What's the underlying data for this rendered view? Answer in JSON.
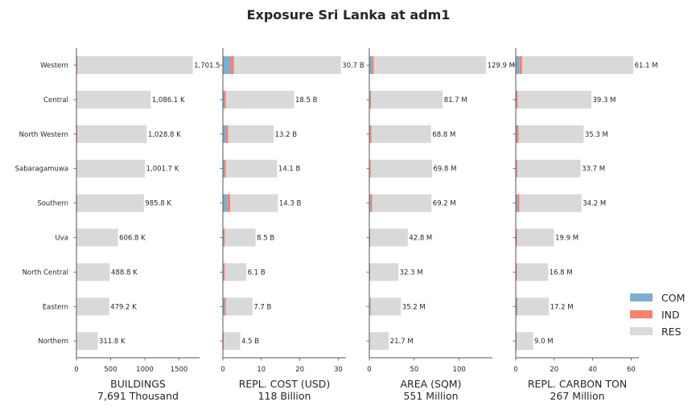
{
  "chart_data": {
    "title": "Exposure Sri Lanka at adm1",
    "type": "bar",
    "orientation": "horizontal",
    "stacked": true,
    "legend": {
      "placement": "right",
      "entries": [
        {
          "name": "COM",
          "color": "#7eadd1"
        },
        {
          "name": "IND",
          "color": "#f4826e"
        },
        {
          "name": "RES",
          "color": "#d9d9d9"
        }
      ]
    },
    "categories": [
      "Western",
      "Central",
      "North Western",
      "Sabaragamuwa",
      "Southern",
      "Uva",
      "North Central",
      "Eastern",
      "Northern"
    ],
    "panels": [
      {
        "xlabel": "BUILDINGS",
        "subtitle": "7,691 Thousand",
        "xlim": [
          0,
          1800
        ],
        "xticks": [
          0,
          500,
          1000,
          1500
        ],
        "xtick_labels": [
          "0",
          "500",
          "1000",
          "1500"
        ],
        "labels": [
          "1,701.5 K",
          "1,086.1 K",
          "1,028.8 K",
          "1,001.7 K",
          "985.8 K",
          "606.8 K",
          "488.8 K",
          "479.2 K",
          "311.8 K"
        ],
        "series": [
          {
            "name": "COM",
            "values": [
              5,
              3,
              3,
              3,
              3,
              2,
              2,
              2,
              1
            ]
          },
          {
            "name": "IND",
            "values": [
              10,
              4,
              9,
              4,
              8,
              3,
              4,
              3,
              3
            ]
          },
          {
            "name": "RES",
            "values": [
              1686.5,
              1079.1,
              1016.8,
              994.7,
              974.8,
              601.8,
              482.8,
              474.2,
              307.8
            ]
          }
        ]
      },
      {
        "xlabel": "REPL. COST (USD)",
        "subtitle": "118 Billion",
        "xlim": [
          0,
          32
        ],
        "xticks": [
          0,
          10,
          20,
          30
        ],
        "xtick_labels": [
          "0",
          "10",
          "20",
          "30"
        ],
        "labels": [
          "30.7 B",
          "18.5 B",
          "13.2 B",
          "14.1 B",
          "14.3 B",
          "8.5 B",
          "6.1 B",
          "7.7 B",
          "4.5 B"
        ],
        "series": [
          {
            "name": "COM",
            "values": [
              2.0,
              0.4,
              0.8,
              0.4,
              1.2,
              0.2,
              0.2,
              0.5,
              0.1
            ]
          },
          {
            "name": "IND",
            "values": [
              0.9,
              0.4,
              0.6,
              0.4,
              0.7,
              0.3,
              0.3,
              0.3,
              0.1
            ]
          },
          {
            "name": "RES",
            "values": [
              27.8,
              17.7,
              11.8,
              13.3,
              12.4,
              8.0,
              5.6,
              6.9,
              4.3
            ]
          }
        ]
      },
      {
        "xlabel": "AREA (SQM)",
        "subtitle": "551 Million",
        "xlim": [
          0,
          137
        ],
        "xticks": [
          0,
          50,
          100
        ],
        "xtick_labels": [
          "0",
          "50",
          "100"
        ],
        "labels": [
          "129.9 M",
          "81.7 M",
          "68.8 M",
          "69.8 M",
          "69.2 M",
          "42.8 M",
          "32.3 M",
          "35.2 M",
          "21.7 M"
        ],
        "series": [
          {
            "name": "COM",
            "values": [
              3.0,
              0.8,
              1.0,
              0.5,
              1.5,
              0.3,
              0.3,
              0.8,
              0.2
            ]
          },
          {
            "name": "IND",
            "values": [
              2.0,
              1.0,
              1.5,
              1.0,
              1.8,
              0.7,
              0.7,
              0.7,
              0.3
            ]
          },
          {
            "name": "RES",
            "values": [
              124.9,
              79.9,
              66.3,
              68.3,
              65.9,
              41.8,
              31.3,
              33.7,
              21.2
            ]
          }
        ]
      },
      {
        "xlabel": "REPL. CARBON TON",
        "subtitle": "267 Million",
        "xlim": [
          0,
          64
        ],
        "xticks": [
          0,
          20,
          40,
          60
        ],
        "xtick_labels": [
          "0",
          "20",
          "40",
          "60"
        ],
        "labels": [
          "61.1 M",
          "39.3 M",
          "35.3 M",
          "33.7 M",
          "34.2 M",
          "19.9 M",
          "16.8 M",
          "17.2 M",
          "9.0 M"
        ],
        "series": [
          {
            "name": "COM",
            "values": [
              2.0,
              0.4,
              0.6,
              0.4,
              1.0,
              0.2,
              0.2,
              0.6,
              0.1
            ]
          },
          {
            "name": "IND",
            "values": [
              1.3,
              0.6,
              0.9,
              0.4,
              0.9,
              0.5,
              0.4,
              0.3,
              0.3
            ]
          },
          {
            "name": "RES",
            "values": [
              57.8,
              38.3,
              33.8,
              32.9,
              32.3,
              19.2,
              16.2,
              16.3,
              8.6
            ]
          }
        ]
      }
    ]
  }
}
